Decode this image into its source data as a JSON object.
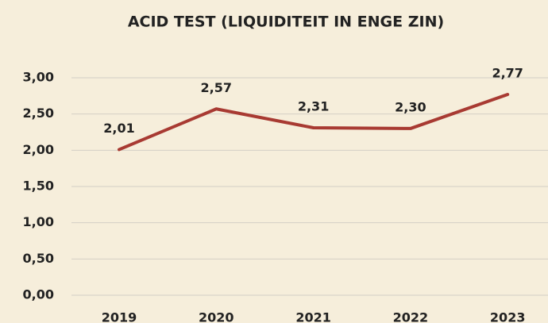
{
  "chart_data": {
    "type": "line",
    "title": "ACID TEST (LIQUIDITEIT IN ENGE ZIN)",
    "categories": [
      "2019",
      "2020",
      "2021",
      "2022",
      "2023"
    ],
    "series": [
      {
        "name": "Acid test",
        "color": "#a83a32",
        "values": [
          2.01,
          2.57,
          2.31,
          2.3,
          2.77
        ],
        "value_labels": [
          "2,01",
          "2,57",
          "2,31",
          "2,30",
          "2,77"
        ]
      }
    ],
    "ylim": [
      0,
      3
    ],
    "yticks": [
      {
        "value": 0,
        "label": "0,00"
      },
      {
        "value": 0.5,
        "label": "0,50"
      },
      {
        "value": 1,
        "label": "1,00"
      },
      {
        "value": 1.5,
        "label": "1,50"
      },
      {
        "value": 2,
        "label": "2,00"
      },
      {
        "value": 2.5,
        "label": "2,50"
      },
      {
        "value": 3,
        "label": "3,00"
      }
    ],
    "grid": true
  }
}
